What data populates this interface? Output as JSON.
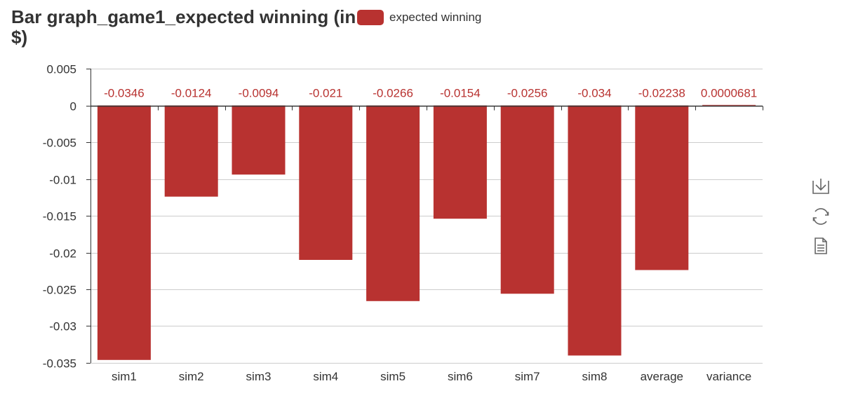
{
  "chart_data": {
    "type": "bar",
    "title": "Bar graph_game1_expected winning (in $)",
    "categories": [
      "sim1",
      "sim2",
      "sim3",
      "sim4",
      "sim5",
      "sim6",
      "sim7",
      "sim8",
      "average",
      "variance"
    ],
    "series": [
      {
        "name": "expected winning",
        "values": [
          -0.0346,
          -0.0124,
          -0.0094,
          -0.021,
          -0.0266,
          -0.0154,
          -0.0256,
          -0.034,
          -0.02238,
          6.81e-05
        ],
        "labels": [
          "-0.0346",
          "-0.0124",
          "-0.0094",
          "-0.021",
          "-0.0266",
          "-0.0154",
          "-0.0256",
          "-0.034",
          "-0.02238",
          "0.0000681"
        ]
      }
    ],
    "ylim": [
      -0.035,
      0.005
    ],
    "yticks": [
      "0.005",
      "0",
      "-0.005",
      "-0.01",
      "-0.015",
      "-0.02",
      "-0.025",
      "-0.03",
      "-0.035"
    ],
    "ytick_values": [
      0.005,
      0,
      -0.005,
      -0.01,
      -0.015,
      -0.02,
      -0.025,
      -0.03,
      -0.035
    ],
    "grid": true,
    "legend_position": "top"
  },
  "colors": {
    "bar": "#b83230",
    "grid": "#cccccc",
    "axis": "#333333",
    "text": "#333333"
  },
  "toolbox": {
    "icons": [
      "download-icon",
      "refresh-icon",
      "data-view-icon"
    ]
  }
}
